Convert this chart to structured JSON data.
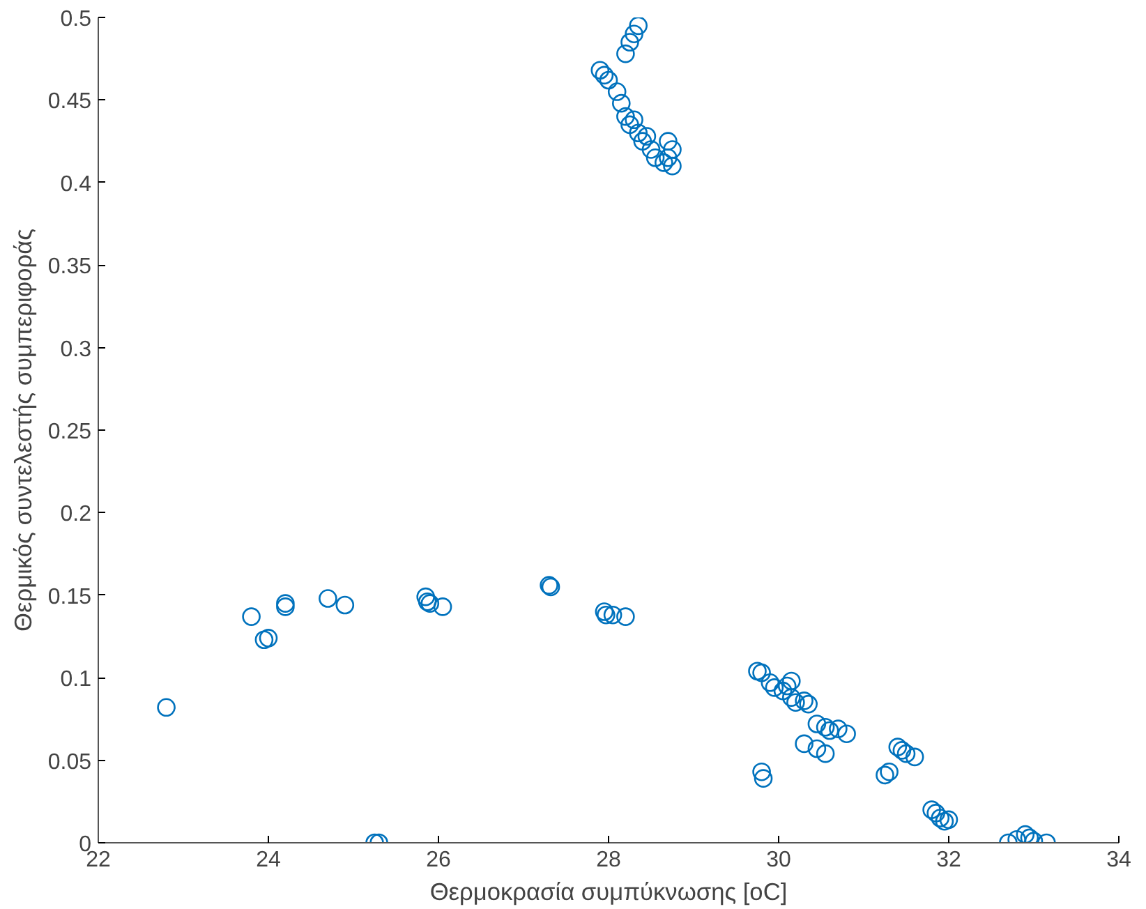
{
  "chart_data": {
    "type": "scatter",
    "xlabel": "Θερμοκρασία συμπύκνωσης [oC]",
    "ylabel": "Θερμικός συντελεστής συμπεριφοράς",
    "marker": "circle",
    "grid": false,
    "xlim": [
      22,
      34
    ],
    "ylim": [
      0,
      0.5
    ],
    "xticks": [
      22,
      24,
      26,
      28,
      30,
      32,
      34
    ],
    "yticks": [
      0,
      0.05,
      0.1,
      0.15,
      0.2,
      0.25,
      0.3,
      0.35,
      0.4,
      0.45,
      0.5
    ],
    "series": [
      {
        "color": "#0072bd",
        "x": [
          22.8,
          23.8,
          23.95,
          24.0,
          24.2,
          24.2,
          24.7,
          24.9,
          25.25,
          25.3,
          25.85,
          25.87,
          25.9,
          26.05,
          27.3,
          27.32,
          27.95,
          27.97,
          28.05,
          28.2,
          28.35,
          28.3,
          28.25,
          28.2,
          27.9,
          27.95,
          28.0,
          28.1,
          28.15,
          28.2,
          28.25,
          28.35,
          28.4,
          28.5,
          28.55,
          28.65,
          28.7,
          28.75,
          28.75,
          28.7,
          28.3,
          28.45,
          29.75,
          29.8,
          29.8,
          29.82,
          29.9,
          29.95,
          30.05,
          30.1,
          30.15,
          30.15,
          30.2,
          30.3,
          30.35,
          30.45,
          30.55,
          30.6,
          30.7,
          30.8,
          30.3,
          30.45,
          30.55,
          31.3,
          31.25,
          31.4,
          31.45,
          31.5,
          31.6,
          31.8,
          31.85,
          31.9,
          31.95,
          32.0,
          32.7,
          32.8,
          32.9,
          32.95,
          33.0,
          33.15
        ],
        "values": [
          0.082,
          0.137,
          0.123,
          0.124,
          0.145,
          0.143,
          0.148,
          0.144,
          0,
          0,
          0.149,
          0.146,
          0.145,
          0.143,
          0.156,
          0.155,
          0.14,
          0.138,
          0.138,
          0.137,
          0.495,
          0.49,
          0.485,
          0.478,
          0.468,
          0.465,
          0.462,
          0.455,
          0.448,
          0.44,
          0.435,
          0.43,
          0.425,
          0.42,
          0.415,
          0.412,
          0.425,
          0.42,
          0.41,
          0.415,
          0.438,
          0.428,
          0.104,
          0.103,
          0.043,
          0.039,
          0.097,
          0.094,
          0.092,
          0.095,
          0.098,
          0.088,
          0.085,
          0.086,
          0.084,
          0.072,
          0.07,
          0.068,
          0.069,
          0.066,
          0.06,
          0.057,
          0.054,
          0.043,
          0.041,
          0.058,
          0.056,
          0.054,
          0.052,
          0.02,
          0.018,
          0.015,
          0.013,
          0.014,
          0,
          0.002,
          0.005,
          0.003,
          0.001,
          0
        ]
      }
    ]
  }
}
